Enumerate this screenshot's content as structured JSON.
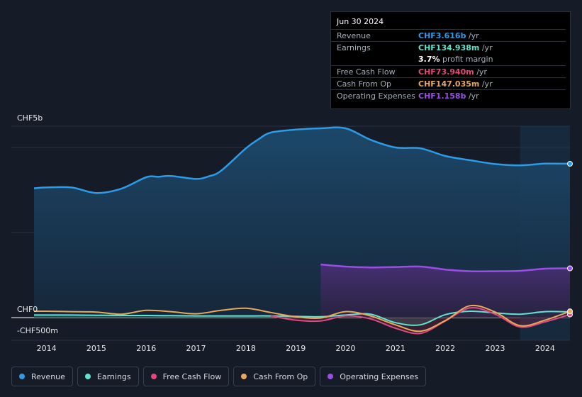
{
  "colors": {
    "revenue": "#2e9be6",
    "earnings": "#5fe3cf",
    "free_cash_flow": "#e0487e",
    "cash_from_op": "#e8a85d",
    "operating_expenses": "#9b4ee6",
    "background": "#151b27"
  },
  "tooltip": {
    "date": "Jun 30 2024",
    "rows": [
      {
        "label": "Revenue",
        "value": "CHF3.616b",
        "unit": " /yr",
        "color": "#2e9be6"
      },
      {
        "label": "Earnings",
        "value": "CHF134.938m",
        "unit": " /yr",
        "color": "#5fe3cf"
      },
      {
        "label": "",
        "value": "3.7%",
        "unit": " profit margin",
        "color": "#ffffff"
      },
      {
        "label": "Free Cash Flow",
        "value": "CHF73.940m",
        "unit": " /yr",
        "color": "#e0487e"
      },
      {
        "label": "Cash From Op",
        "value": "CHF147.035m",
        "unit": " /yr",
        "color": "#e8a85d"
      },
      {
        "label": "Operating Expenses",
        "value": "CHF1.158b",
        "unit": " /yr",
        "color": "#9b4ee6"
      }
    ]
  },
  "legend": [
    {
      "label": "Revenue",
      "color": "#2e9be6"
    },
    {
      "label": "Earnings",
      "color": "#5fe3cf"
    },
    {
      "label": "Free Cash Flow",
      "color": "#e0487e"
    },
    {
      "label": "Cash From Op",
      "color": "#e8a85d"
    },
    {
      "label": "Operating Expenses",
      "color": "#9b4ee6"
    }
  ],
  "chart_data": {
    "type": "area",
    "title": "",
    "y_tick_labels": {
      "top": "CHF5b",
      "zero": "CHF0",
      "bottom": "-CHF500m"
    },
    "ylim": [
      -500,
      5000
    ],
    "y_unit": "CHF m",
    "xlim": [
      2013.75,
      2024.5
    ],
    "x_tick_labels": [
      "2014",
      "2015",
      "2016",
      "2017",
      "2018",
      "2019",
      "2020",
      "2021",
      "2022",
      "2023",
      "2024"
    ],
    "x_ticks": [
      2014,
      2015,
      2016,
      2017,
      2018,
      2019,
      2020,
      2021,
      2022,
      2023,
      2024
    ],
    "forecast_shade_start": 2023.5,
    "series": [
      {
        "name": "Revenue",
        "key": "revenue",
        "x": [
          2013.75,
          2014.0,
          2014.5,
          2015.0,
          2015.5,
          2016.0,
          2016.25,
          2016.5,
          2017.0,
          2017.25,
          2017.5,
          2018.0,
          2018.25,
          2018.5,
          2019.0,
          2019.5,
          2020.0,
          2020.5,
          2021.0,
          2021.5,
          2022.0,
          2022.5,
          2023.0,
          2023.5,
          2024.0,
          2024.5
        ],
        "values": [
          3040,
          3060,
          3060,
          2930,
          3030,
          3300,
          3310,
          3330,
          3260,
          3320,
          3450,
          3980,
          4190,
          4350,
          4420,
          4450,
          4450,
          4180,
          4000,
          3980,
          3800,
          3700,
          3610,
          3580,
          3620,
          3616
        ]
      },
      {
        "name": "Earnings",
        "key": "earnings",
        "x": [
          2013.75,
          2014.0,
          2014.5,
          2015.0,
          2015.5,
          2016.0,
          2016.5,
          2017.0,
          2017.5,
          2018.0,
          2018.5,
          2019.0,
          2019.5,
          2020.0,
          2020.5,
          2021.0,
          2021.5,
          2022.0,
          2022.5,
          2023.0,
          2023.5,
          2024.0,
          2024.5
        ],
        "values": [
          60,
          60,
          60,
          55,
          50,
          50,
          45,
          40,
          40,
          40,
          40,
          30,
          20,
          60,
          80,
          -120,
          -170,
          70,
          150,
          110,
          80,
          140,
          135
        ]
      },
      {
        "name": "Free Cash Flow",
        "key": "free_cash_flow",
        "x": [
          2018.5,
          2019.0,
          2019.5,
          2020.0,
          2020.5,
          2021.0,
          2021.5,
          2022.0,
          2022.5,
          2023.0,
          2023.5,
          2024.0,
          2024.5
        ],
        "values": [
          40,
          -60,
          -80,
          40,
          -30,
          -250,
          -370,
          -80,
          230,
          80,
          -220,
          -100,
          74
        ]
      },
      {
        "name": "Cash From Op",
        "key": "cash_from_op",
        "x": [
          2013.75,
          2014.0,
          2014.5,
          2015.0,
          2015.5,
          2016.0,
          2016.5,
          2017.0,
          2017.5,
          2018.0,
          2018.5,
          2019.0,
          2019.5,
          2020.0,
          2020.5,
          2021.0,
          2021.5,
          2022.0,
          2022.5,
          2023.0,
          2023.5,
          2024.0,
          2024.5
        ],
        "values": [
          150,
          150,
          140,
          130,
          80,
          170,
          140,
          90,
          170,
          220,
          120,
          20,
          -10,
          140,
          40,
          -170,
          -320,
          -70,
          280,
          130,
          -190,
          -60,
          147
        ]
      },
      {
        "name": "Operating Expenses",
        "key": "operating_expenses",
        "x": [
          2019.5,
          2020.0,
          2020.5,
          2021.0,
          2021.5,
          2022.0,
          2022.5,
          2023.0,
          2023.5,
          2024.0,
          2024.5
        ],
        "values": [
          1250,
          1200,
          1180,
          1190,
          1200,
          1130,
          1090,
          1090,
          1100,
          1150,
          1158
        ]
      }
    ]
  }
}
